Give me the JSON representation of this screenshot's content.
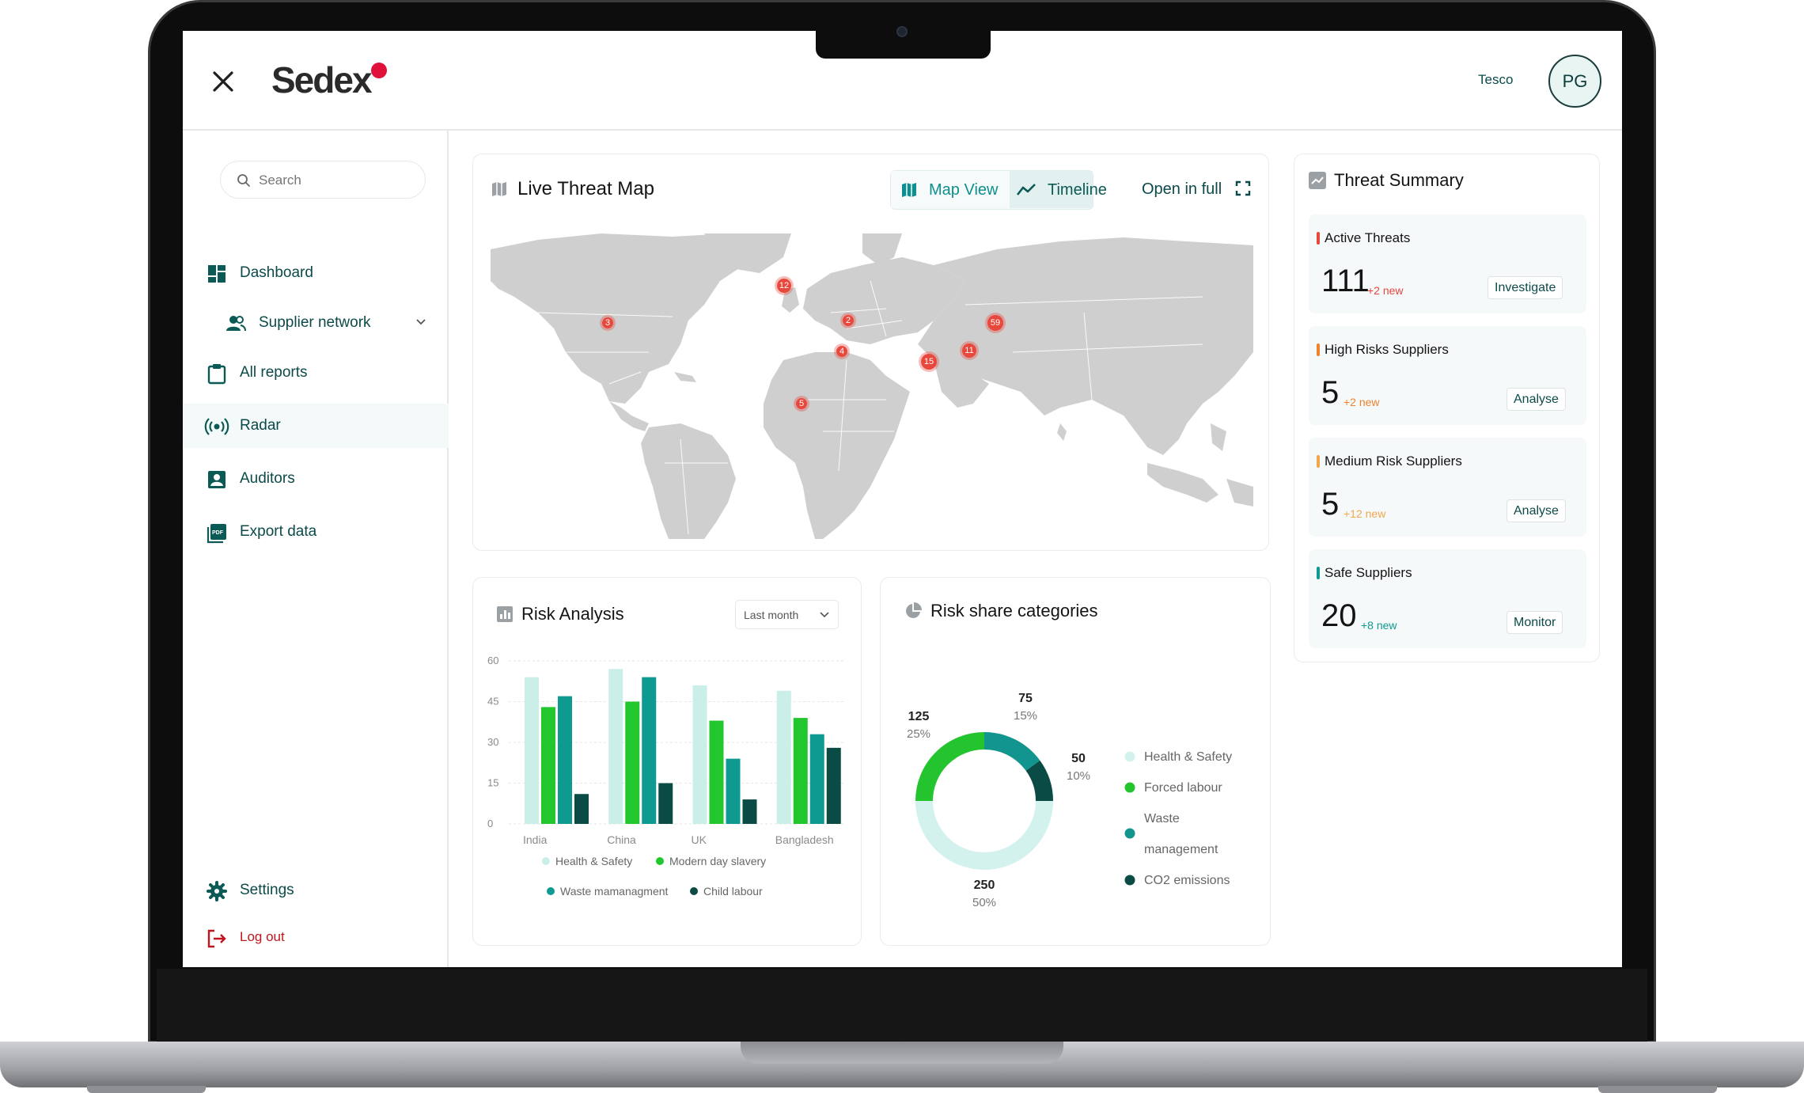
{
  "app": {
    "logo": "Sedex",
    "org_name": "Tesco",
    "avatar_initials": "PG"
  },
  "sidebar": {
    "search_placeholder": "Search",
    "items": [
      {
        "label": "Dashboard",
        "icon": "dashboard-icon"
      },
      {
        "label": "Supplier network",
        "icon": "people-icon"
      },
      {
        "label": "All reports",
        "icon": "clipboard-icon"
      },
      {
        "label": "Radar",
        "icon": "radar-icon"
      },
      {
        "label": "Auditors",
        "icon": "auditor-icon"
      },
      {
        "label": "Export data",
        "icon": "pdf-icon"
      }
    ],
    "settings_label": "Settings",
    "logout_label": "Log out"
  },
  "threat_map": {
    "title": "Live Threat Map",
    "map_view_label": "Map View",
    "timeline_label": "Timeline",
    "open_full_label": "Open in full",
    "markers": [
      {
        "label": "3",
        "region": "United States"
      },
      {
        "label": "12",
        "region": "United Kingdom"
      },
      {
        "label": "2",
        "region": "Turkey"
      },
      {
        "label": "4",
        "region": "Egypt"
      },
      {
        "label": "5",
        "region": "Nigeria"
      },
      {
        "label": "15",
        "region": "India"
      },
      {
        "label": "11",
        "region": "Bangladesh"
      },
      {
        "label": "59",
        "region": "China"
      }
    ]
  },
  "risk_analysis": {
    "title": "Risk Analysis",
    "period": "Last month",
    "chart_data": {
      "type": "bar",
      "categories": [
        "India",
        "China",
        "UK",
        "Bangladesh"
      ],
      "ylim": [
        0,
        60
      ],
      "yticks": [
        "0",
        "15",
        "30",
        "45",
        "60"
      ],
      "series": [
        {
          "name": "Health & Safety",
          "color": "#c9efe8",
          "values": [
            54,
            57,
            51,
            49
          ]
        },
        {
          "name": "Modern day slavery",
          "color": "#22c72e",
          "values": [
            43,
            45,
            38,
            39
          ]
        },
        {
          "name": "Waste mamanagment",
          "color": "#0e9a91",
          "values": [
            47,
            54,
            24,
            33
          ]
        },
        {
          "name": "Child labour",
          "color": "#0b4b45",
          "values": [
            11,
            15,
            9,
            28
          ]
        }
      ]
    }
  },
  "risk_share": {
    "title": "Risk share categories",
    "chart_data": {
      "type": "pie",
      "slices": [
        {
          "name": "Health & Safety",
          "value": 250,
          "percent": "50%",
          "color": "#d3f2ee"
        },
        {
          "name": "Forced labour",
          "value": 125,
          "percent": "25%",
          "color": "#24c42f"
        },
        {
          "name": "Waste management",
          "value": 75,
          "percent": "15%",
          "color": "#11958e"
        },
        {
          "name": "CO2 emissions",
          "value": 50,
          "percent": "10%",
          "color": "#0b4b45"
        }
      ],
      "legend": [
        "Health & Safety",
        "Forced labour",
        "Waste",
        "management",
        "CO2 emissions"
      ]
    }
  },
  "threat_summary": {
    "title": "Threat Summary",
    "items": [
      {
        "name": "Active Threats",
        "count": "111",
        "new": "+2 new",
        "action": "Investigate",
        "color": "#e8473c"
      },
      {
        "name": "High Risks Suppliers",
        "count": "5",
        "new": "+2 new",
        "action": "Analyse",
        "color": "#f0822e"
      },
      {
        "name": "Medium Risk Suppliers",
        "count": "5",
        "new": "+12 new",
        "action": "Analyse",
        "color": "#f2a74c"
      },
      {
        "name": "Safe Suppliers",
        "count": "20",
        "new": "+8 new",
        "action": "Monitor",
        "color": "#0e9a91"
      }
    ]
  }
}
